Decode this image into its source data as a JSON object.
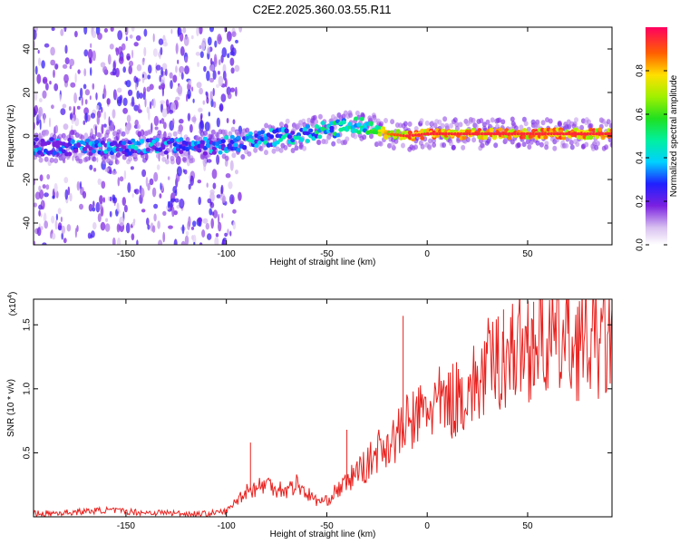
{
  "title": "C2E2.2025.360.03.55.R11",
  "colors": {
    "snr_line": "#e8221f",
    "frame": "#000000",
    "grid": "#aaaaaa"
  },
  "chart_data": [
    {
      "type": "heatmap",
      "name": "spectrogram",
      "xlabel": "Height of straight line (km)",
      "ylabel": "Frequency (Hz)",
      "xlim": [
        -196,
        92
      ],
      "ylim": [
        -50,
        50
      ],
      "x_ticks": [
        -150,
        -100,
        -50,
        0,
        50
      ],
      "x_tick_labels": [
        "-150",
        "-100",
        "-50",
        "0",
        "50"
      ],
      "y_ticks": [
        -40,
        -20,
        0,
        20,
        40
      ],
      "y_tick_labels": [
        "-40",
        "-20",
        "0",
        "20",
        "40"
      ],
      "ridge": {
        "description": "dominant spectral line (frequency vs height)",
        "x": [
          -196,
          -180,
          -160,
          -140,
          -120,
          -100,
          -80,
          -60,
          -50,
          -40,
          -32,
          -25,
          -20,
          -10,
          0,
          20,
          40,
          60,
          80,
          92
        ],
        "freq": [
          -5,
          -5,
          -5,
          -5,
          -5,
          -4,
          -1,
          1,
          3,
          4,
          5,
          3,
          1,
          0,
          1,
          1,
          1,
          1,
          1,
          1
        ],
        "amplitude": [
          0.4,
          0.4,
          0.45,
          0.45,
          0.4,
          0.45,
          0.5,
          0.5,
          0.55,
          0.55,
          0.55,
          0.7,
          0.85,
          0.95,
          0.95,
          0.95,
          0.95,
          0.95,
          0.95,
          0.95
        ]
      },
      "noise_region_x": [
        -196,
        -105
      ],
      "colorbar": {
        "label": "Normalized spectral amplitude",
        "range": [
          0,
          1
        ],
        "ticks": [
          0.0,
          0.2,
          0.4,
          0.6,
          0.8
        ],
        "tick_labels": [
          "0.0",
          "0.2",
          "0.4",
          "0.6",
          "0.8"
        ]
      }
    },
    {
      "type": "line",
      "name": "snr",
      "xlabel": "Height of straight line (km)",
      "ylabel": "SNR (10 * v/v)",
      "y_multiplier_label": "(x10",
      "y_multiplier_exp": "4",
      "y_multiplier_close": ")",
      "xlim": [
        -196,
        92
      ],
      "ylim": [
        0,
        1.7
      ],
      "x_ticks": [
        -150,
        -100,
        -50,
        0,
        50
      ],
      "x_tick_labels": [
        "-150",
        "-100",
        "-50",
        "0",
        "50"
      ],
      "y_ticks": [
        0.5,
        1.0,
        1.5
      ],
      "y_tick_labels": [
        "0.5",
        "1.0",
        "1.5"
      ],
      "series": [
        {
          "name": "SNR",
          "x": [
            -196,
            -180,
            -170,
            -160,
            -150,
            -140,
            -130,
            -120,
            -110,
            -100,
            -95,
            -90,
            -85,
            -80,
            -75,
            -70,
            -65,
            -60,
            -55,
            -50,
            -45,
            -40,
            -35,
            -30,
            -25,
            -20,
            -15,
            -10,
            -5,
            0,
            5,
            10,
            15,
            20,
            25,
            30,
            35,
            40,
            45,
            50,
            55,
            60,
            65,
            70,
            75,
            80,
            85,
            92
          ],
          "values": [
            0.02,
            0.03,
            0.04,
            0.05,
            0.04,
            0.03,
            0.03,
            0.02,
            0.02,
            0.04,
            0.12,
            0.2,
            0.22,
            0.25,
            0.22,
            0.2,
            0.25,
            0.18,
            0.12,
            0.12,
            0.2,
            0.25,
            0.35,
            0.38,
            0.5,
            0.55,
            0.6,
            0.7,
            0.75,
            0.82,
            0.85,
            0.85,
            0.9,
            0.95,
            1.0,
            1.12,
            1.18,
            1.22,
            1.28,
            1.3,
            1.32,
            1.32,
            1.33,
            1.33,
            1.32,
            1.32,
            1.32,
            1.3
          ],
          "spikes": [
            {
              "x": -88,
              "value": 0.58
            },
            {
              "x": -40,
              "value": 0.68
            },
            {
              "x": -12,
              "value": 1.57
            },
            {
              "x": 38,
              "value": 1.62
            },
            {
              "x": 53,
              "value": 1.68
            }
          ]
        }
      ]
    }
  ]
}
